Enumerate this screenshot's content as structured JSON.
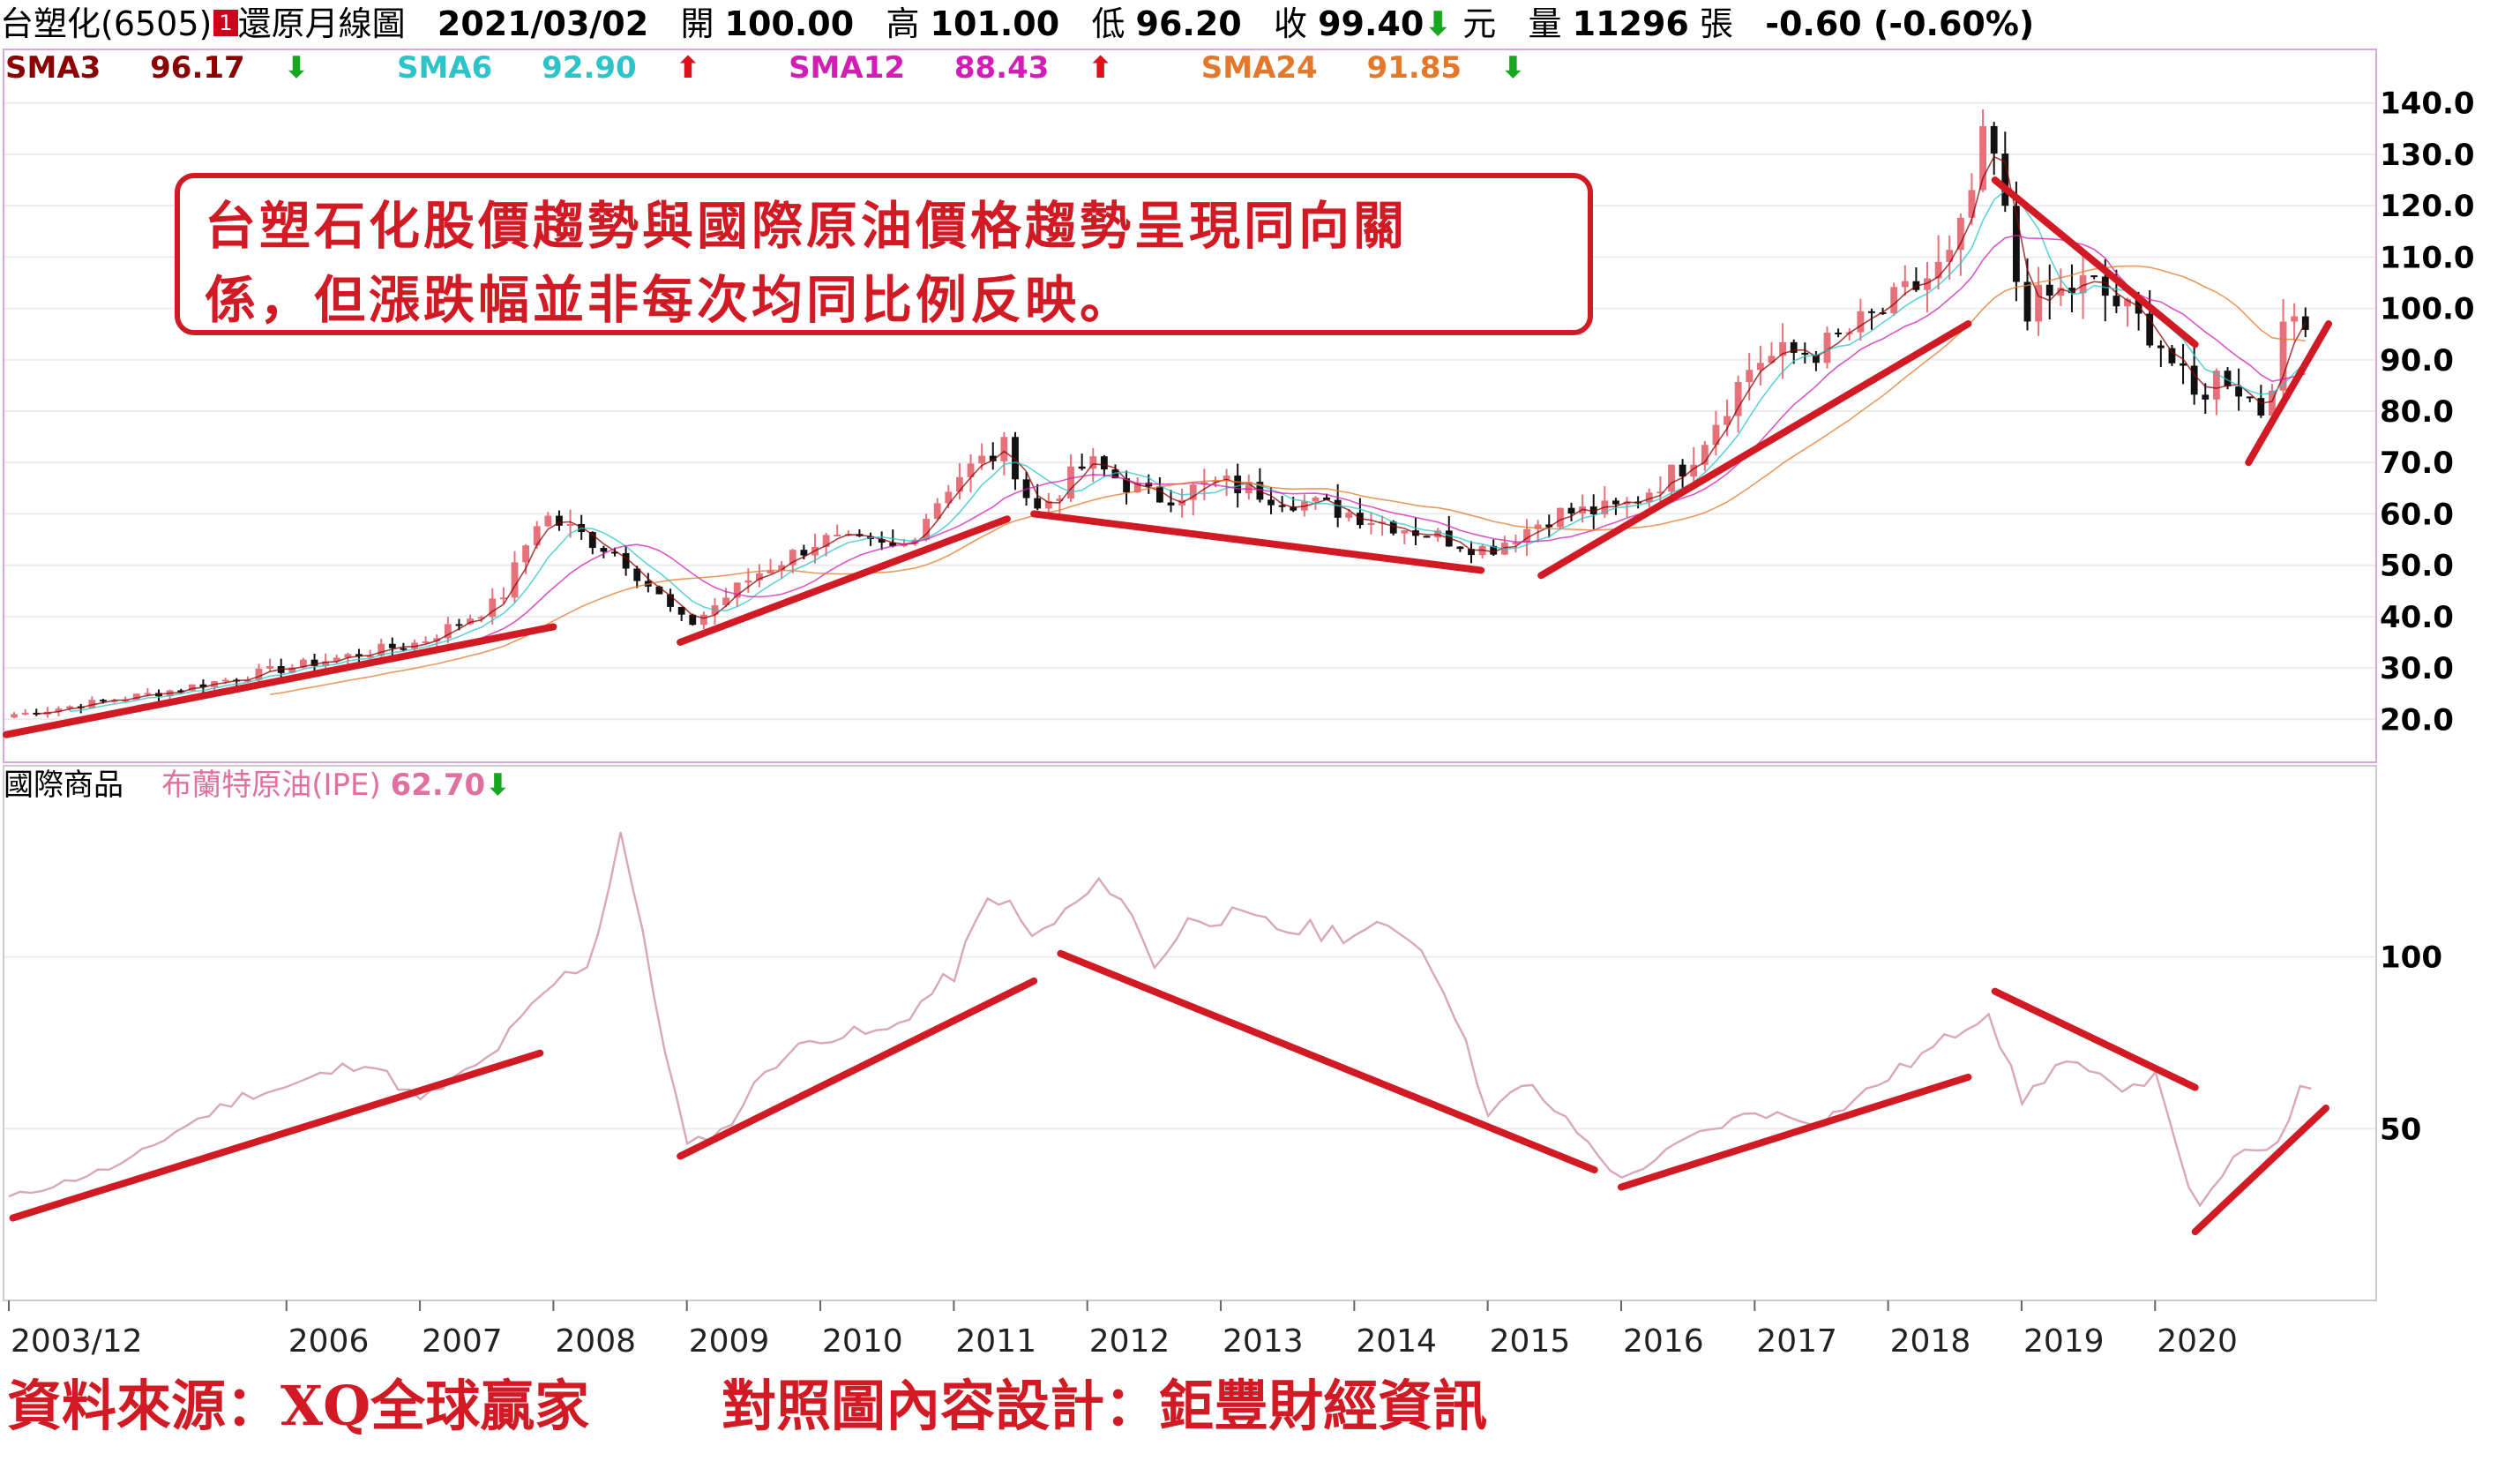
{
  "header": {
    "stock": "台塑化(6505)",
    "badge": "1",
    "chart_kind": "還原月線圖",
    "date": "2021/03/02",
    "open_label": "開",
    "open": "100.00",
    "high_label": "高",
    "high": "101.00",
    "low_label": "低",
    "low": "96.20",
    "close_label": "收",
    "close": "99.40",
    "close_arrow": "⬇",
    "unit": "元",
    "volume_label": "量",
    "volume": "11296",
    "volume_unit": "張",
    "change": "-0.60 (-0.60%)"
  },
  "ma_legend": [
    {
      "label": "SMA3",
      "value": "96.17",
      "arrow": "⬇",
      "color": "#8b0000",
      "arrow_color": "#18a820"
    },
    {
      "label": "SMA6",
      "value": "92.90",
      "arrow": "⬆",
      "color": "#2cc4c8",
      "arrow_color": "#e0101a"
    },
    {
      "label": "SMA12",
      "value": "88.43",
      "arrow": "⬆",
      "color": "#d21eb4",
      "arrow_color": "#e0101a"
    },
    {
      "label": "SMA24",
      "value": "91.85",
      "arrow": "⬇",
      "color": "#e4782a",
      "arrow_color": "#18a820"
    }
  ],
  "oil_panel": {
    "title": "國際商品",
    "series_label": "布蘭特原油(IPE)",
    "value": "62.70",
    "arrow": "⬇",
    "series_color": "#e070a0"
  },
  "annotation": {
    "line1": "台塑石化股價趨勢與國際原油價格趨勢呈現同向關",
    "line2": "係，但漲跌幅並非每次均同比例反映。"
  },
  "footer": {
    "source": "資料來源：XQ全球贏家",
    "design": "對照圖內容設計：鉅豐財經資訊"
  },
  "colors": {
    "up": "#e8707a",
    "down": "#111111",
    "trend": "#d11a24",
    "oil": "#d8a8b8",
    "frame": "#d9a6e0"
  },
  "chart_data": [
    {
      "type": "candlestick",
      "title": "台塑化(6505) 還原月線圖",
      "ylim": [
        13,
        147
      ],
      "yticks": [
        "20.0",
        "30.0",
        "40.0",
        "50.0",
        "60.0",
        "70.0",
        "80.0",
        "90.0",
        "100.0",
        "110.0",
        "120.0",
        "130.0",
        "140.0"
      ],
      "ytick_values": [
        20,
        30,
        40,
        50,
        60,
        70,
        80,
        90,
        100,
        110,
        120,
        130,
        140
      ],
      "x": [
        2004.0,
        2005.0,
        2006.0,
        2007.0,
        2007.6,
        2007.9,
        2008.5,
        2009.0,
        2009.5,
        2010.0,
        2010.6,
        2011.0,
        2011.4,
        2011.6,
        2012.0,
        2012.5,
        2013.0,
        2014.0,
        2015.0,
        2015.5,
        2016.0,
        2016.5,
        2017.0,
        2017.5,
        2018.0,
        2018.5,
        2018.75,
        2019.0,
        2019.5,
        2020.0,
        2020.3,
        2020.5,
        2020.8,
        2021.0,
        2021.17
      ],
      "close": [
        21,
        25,
        30,
        35,
        43,
        60,
        52,
        38,
        48,
        55,
        53,
        67,
        73,
        60,
        70,
        63,
        66,
        60,
        53,
        60,
        61,
        70,
        90,
        92,
        100,
        110,
        135,
        100,
        105,
        95,
        82,
        88,
        80,
        98,
        99.4
      ],
      "trend_lines": [
        {
          "from": [
            2003.9,
            17
          ],
          "to": [
            2008.0,
            38
          ]
        },
        {
          "from": [
            2008.95,
            35
          ],
          "to": [
            2011.4,
            59
          ]
        },
        {
          "from": [
            2011.6,
            60
          ],
          "to": [
            2014.95,
            49
          ]
        },
        {
          "from": [
            2015.4,
            48
          ],
          "to": [
            2018.6,
            97
          ]
        },
        {
          "from": [
            2018.8,
            125
          ],
          "to": [
            2020.3,
            93
          ]
        },
        {
          "from": [
            2020.7,
            70
          ],
          "to": [
            2021.3,
            97
          ]
        }
      ]
    },
    {
      "type": "line",
      "title": "布蘭特原油(IPE)",
      "ylim": [
        0,
        150
      ],
      "yticks": [
        "50",
        "100"
      ],
      "ytick_values": [
        50,
        100
      ],
      "xticks": [
        "2003/12",
        "2006",
        "2007",
        "2008",
        "2009",
        "2010",
        "2011",
        "2012",
        "2013",
        "2014",
        "2015",
        "2016",
        "2017",
        "2018",
        "2019",
        "2020"
      ],
      "xtick_values": [
        2003.92,
        2006.0,
        2007.0,
        2008.0,
        2009.0,
        2010.0,
        2011.0,
        2012.0,
        2013.0,
        2014.0,
        2015.0,
        2016.0,
        2017.0,
        2018.0,
        2019.0,
        2020.0
      ],
      "x": [
        2003.92,
        2004.3,
        2004.8,
        2005.2,
        2005.7,
        2006.0,
        2006.6,
        2007.0,
        2007.5,
        2008.0,
        2008.3,
        2008.5,
        2008.8,
        2009.0,
        2009.3,
        2009.6,
        2010.0,
        2010.5,
        2011.0,
        2011.3,
        2011.6,
        2012.0,
        2012.2,
        2012.5,
        2012.8,
        2013.0,
        2013.5,
        2014.0,
        2014.4,
        2014.7,
        2015.0,
        2015.3,
        2015.7,
        2016.0,
        2016.5,
        2017.0,
        2017.5,
        2018.0,
        2018.4,
        2018.75,
        2019.0,
        2019.3,
        2019.7,
        2020.0,
        2020.1,
        2020.3,
        2020.6,
        2020.9,
        2021.1,
        2021.2
      ],
      "values": [
        30,
        34,
        40,
        50,
        60,
        62,
        70,
        58,
        70,
        92,
        100,
        138,
        80,
        45,
        50,
        68,
        77,
        78,
        95,
        120,
        105,
        118,
        122,
        98,
        112,
        112,
        108,
        107,
        108,
        90,
        55,
        63,
        48,
        35,
        47,
        55,
        52,
        65,
        75,
        85,
        58,
        70,
        62,
        65,
        55,
        25,
        42,
        45,
        62,
        63
      ]
    }
  ]
}
